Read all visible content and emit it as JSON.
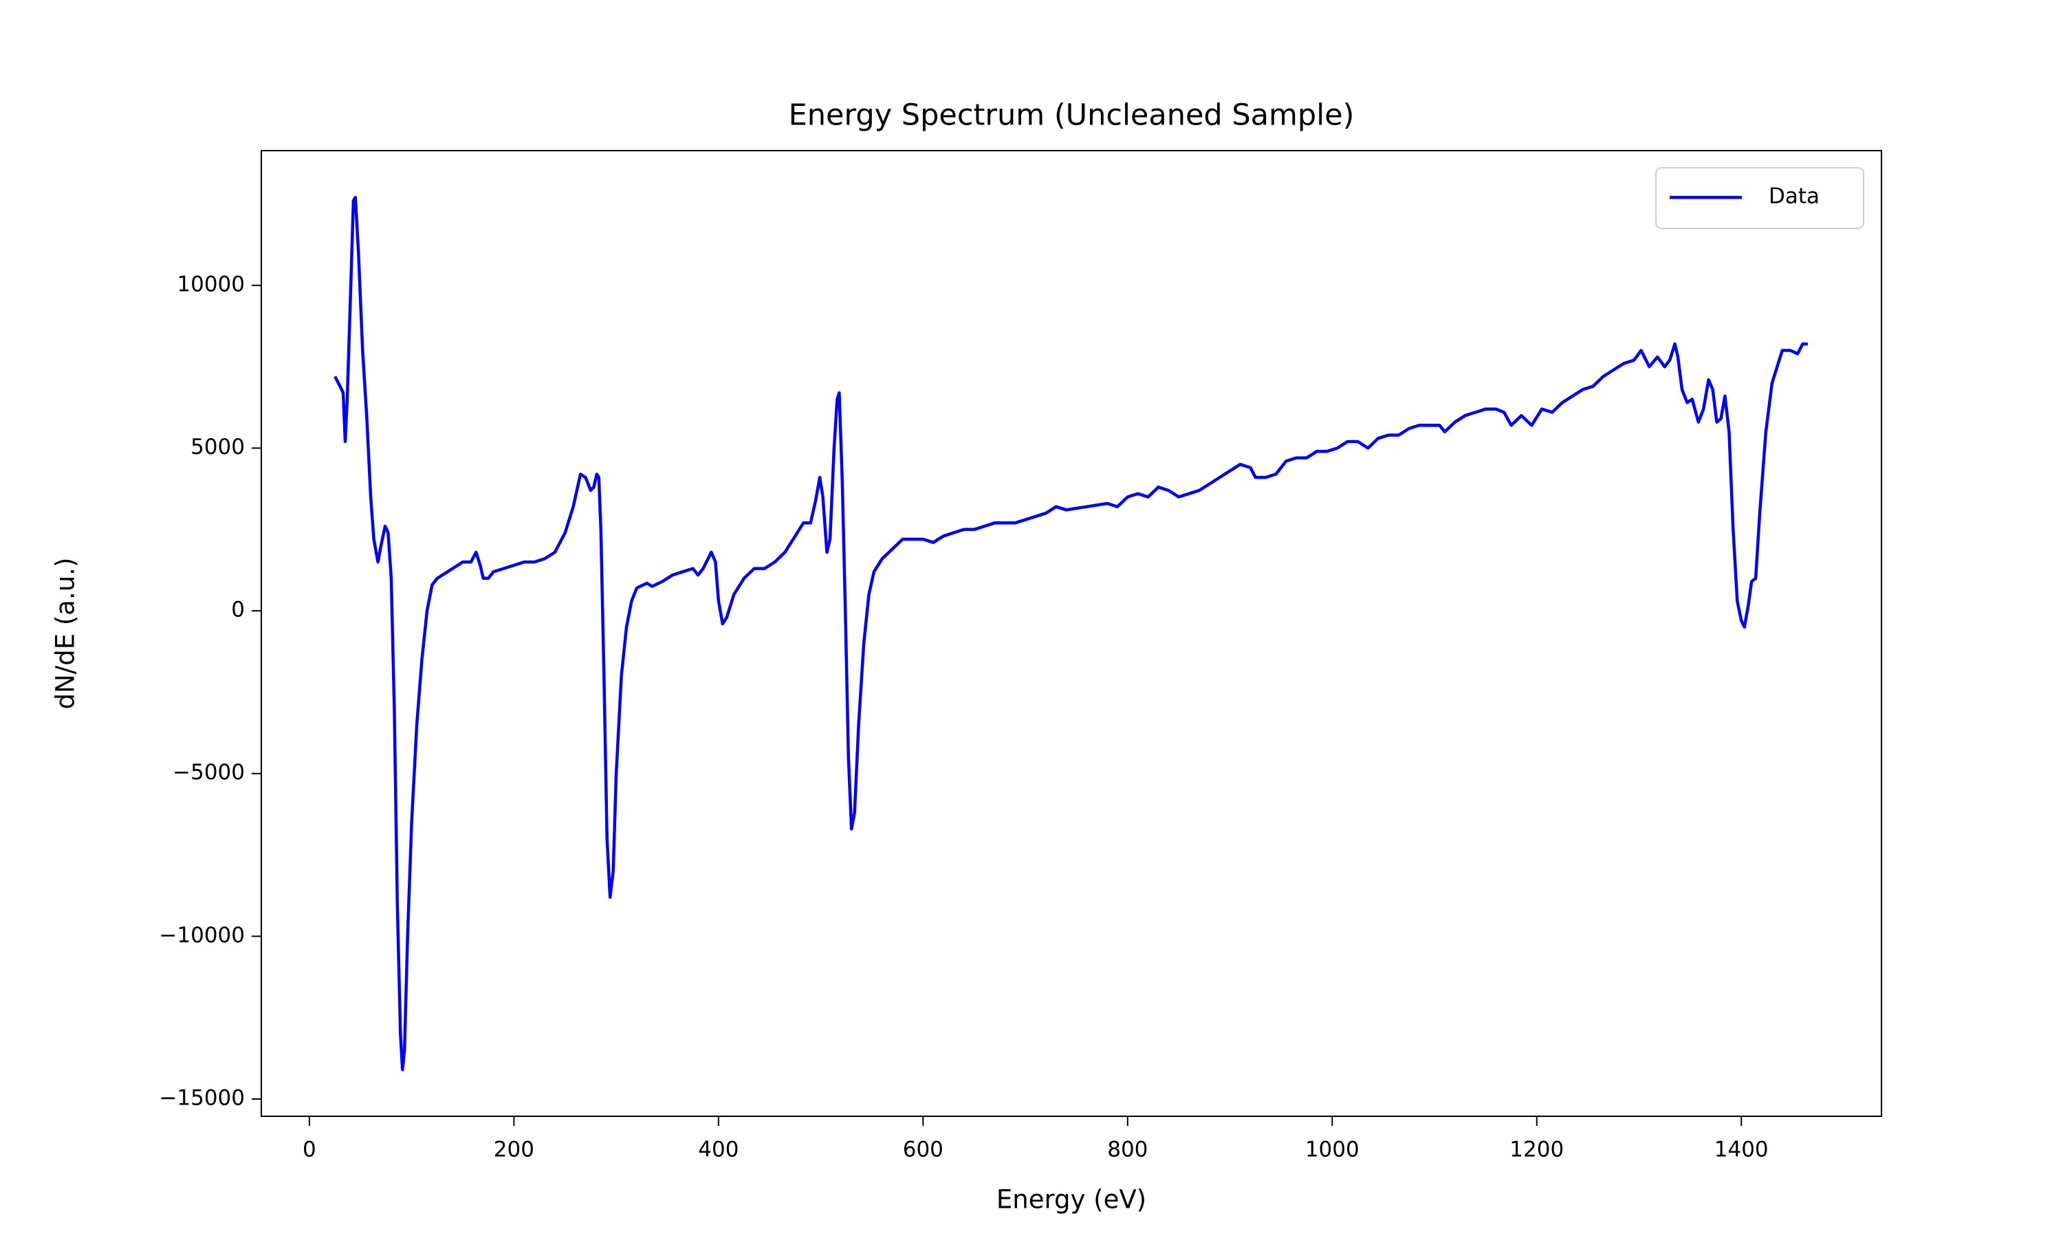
{
  "chart_data": {
    "type": "line",
    "title": "Energy Spectrum (Uncleaned Sample)",
    "x_label": "Energy (eV)",
    "y_label": "dN/dE (a.u.)",
    "xlim": [
      -47,
      1537
    ],
    "ylim": [
      -15530,
      14140
    ],
    "xticks": [
      0,
      200,
      400,
      600,
      800,
      1000,
      1200,
      1400
    ],
    "yticks": [
      {
        "value": -15000,
        "label": "−15000"
      },
      {
        "value": -10000,
        "label": "−10000"
      },
      {
        "value": -5000,
        "label": "−5000"
      },
      0,
      5000,
      10000
    ],
    "legend": "upper right",
    "x": [
      25,
      30,
      33,
      35,
      37,
      40,
      43,
      45,
      48,
      52,
      56,
      60,
      63,
      67,
      70,
      74,
      77,
      80,
      83,
      86,
      89,
      91,
      93,
      96,
      100,
      105,
      110,
      115,
      120,
      125,
      130,
      140,
      150,
      158,
      163,
      167,
      170,
      175,
      180,
      190,
      200,
      210,
      220,
      230,
      240,
      250,
      258,
      265,
      270,
      275,
      278,
      281,
      283,
      285,
      288,
      291,
      294,
      297,
      300,
      305,
      310,
      315,
      320,
      330,
      335,
      345,
      355,
      365,
      375,
      380,
      385,
      393,
      397,
      400,
      404,
      408,
      415,
      425,
      435,
      445,
      455,
      465,
      475,
      483,
      490,
      495,
      499,
      502,
      506,
      509,
      513,
      516,
      518,
      521,
      524,
      527,
      530,
      533,
      537,
      542,
      547,
      552,
      560,
      570,
      580,
      590,
      600,
      610,
      620,
      630,
      640,
      650,
      660,
      670,
      680,
      690,
      700,
      710,
      720,
      730,
      740,
      760,
      780,
      790,
      800,
      810,
      820,
      830,
      840,
      850,
      860,
      870,
      880,
      890,
      900,
      910,
      920,
      925,
      935,
      945,
      955,
      965,
      975,
      985,
      995,
      1005,
      1015,
      1025,
      1035,
      1045,
      1055,
      1065,
      1075,
      1085,
      1095,
      1105,
      1110,
      1120,
      1130,
      1140,
      1150,
      1160,
      1168,
      1175,
      1185,
      1195,
      1205,
      1215,
      1225,
      1235,
      1245,
      1255,
      1265,
      1275,
      1285,
      1295,
      1302,
      1310,
      1318,
      1325,
      1330,
      1335,
      1338,
      1342,
      1347,
      1352,
      1358,
      1363,
      1368,
      1372,
      1376,
      1380,
      1384,
      1388,
      1392,
      1396,
      1400,
      1403,
      1407,
      1410,
      1414,
      1418,
      1424,
      1430,
      1436,
      1440,
      1448,
      1455,
      1460,
      1465
    ],
    "series": [
      {
        "name": "Data",
        "color": "#0000ff",
        "values": [
          7200,
          6900,
          6700,
          5200,
          6500,
          9500,
          12600,
          12700,
          11000,
          8000,
          6000,
          3500,
          2200,
          1500,
          2000,
          2600,
          2400,
          1000,
          -3000,
          -9000,
          -13000,
          -14100,
          -13500,
          -10000,
          -6500,
          -3500,
          -1500,
          0,
          800,
          1000,
          1100,
          1300,
          1500,
          1500,
          1800,
          1400,
          1000,
          1000,
          1200,
          1300,
          1400,
          1500,
          1500,
          1600,
          1800,
          2400,
          3200,
          4200,
          4100,
          3700,
          3800,
          4200,
          4100,
          2500,
          -2000,
          -7000,
          -8800,
          -8000,
          -5000,
          -2000,
          -500,
          300,
          700,
          850,
          750,
          900,
          1100,
          1200,
          1300,
          1100,
          1300,
          1800,
          1500,
          300,
          -400,
          -200,
          500,
          1000,
          1300,
          1300,
          1500,
          1800,
          2300,
          2700,
          2700,
          3400,
          4100,
          3500,
          1800,
          2200,
          5000,
          6500,
          6700,
          4000,
          0,
          -4500,
          -6700,
          -6200,
          -3500,
          -1000,
          500,
          1200,
          1600,
          1900,
          2200,
          2200,
          2200,
          2100,
          2300,
          2400,
          2500,
          2500,
          2600,
          2700,
          2700,
          2700,
          2800,
          2900,
          3000,
          3200,
          3100,
          3200,
          3300,
          3200,
          3500,
          3600,
          3500,
          3800,
          3700,
          3500,
          3600,
          3700,
          3900,
          4100,
          4300,
          4500,
          4400,
          4100,
          4100,
          4200,
          4600,
          4700,
          4700,
          4900,
          4900,
          5000,
          5200,
          5200,
          5000,
          5300,
          5400,
          5400,
          5600,
          5700,
          5700,
          5700,
          5500,
          5800,
          6000,
          6100,
          6200,
          6200,
          6100,
          5700,
          6000,
          5700,
          6200,
          6100,
          6400,
          6600,
          6800,
          6900,
          7200,
          7400,
          7600,
          7700,
          8000,
          7500,
          7800,
          7500,
          7700,
          8200,
          7800,
          6800,
          6400,
          6500,
          5800,
          6200,
          7100,
          6800,
          5800,
          5900,
          6600,
          5500,
          2500,
          300,
          -300,
          -500,
          200,
          900,
          1000,
          3000,
          5500,
          7000,
          7600,
          8000,
          8000,
          7900,
          8200,
          8200
        ]
      }
    ]
  }
}
